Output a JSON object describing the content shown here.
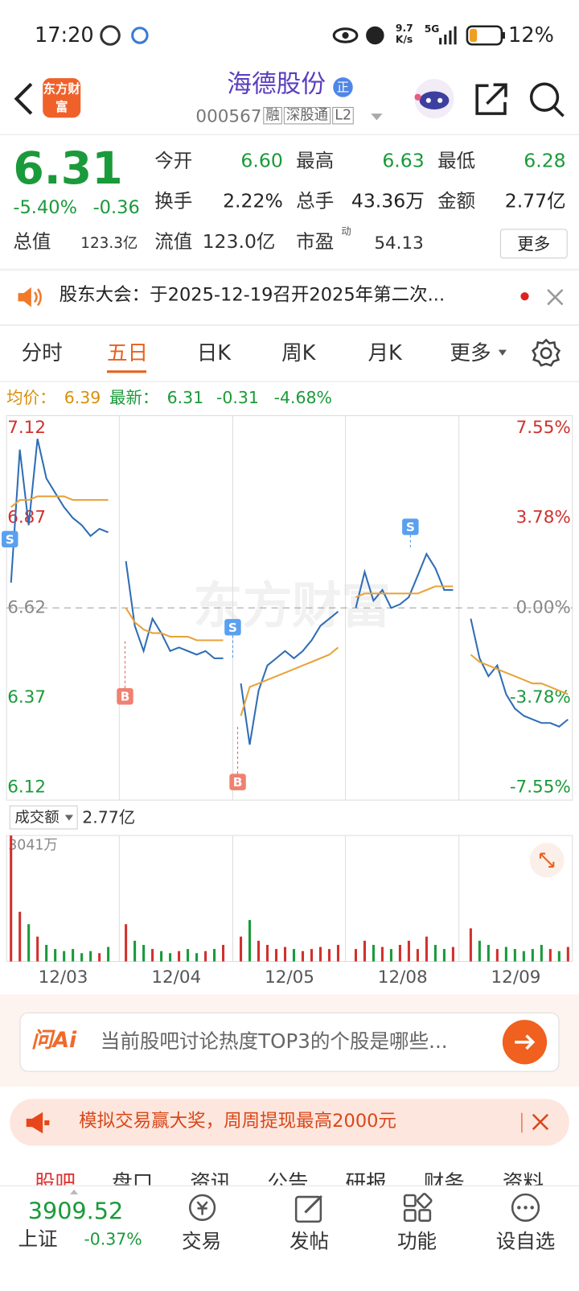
{
  "status_bar": {
    "time": "17:20",
    "speed_value": "9.7",
    "speed_unit": "K/s",
    "network": "5G",
    "battery": "12%"
  },
  "header": {
    "logo": "东方财富",
    "title": "海德股份",
    "badge": "正",
    "code": "000567",
    "tags": [
      "融",
      "深股通",
      "L2"
    ]
  },
  "quote": {
    "price": "6.31",
    "change_pct": "-5.40%",
    "change": "-0.36",
    "fields": [
      {
        "label": "今开",
        "value": "6.60"
      },
      {
        "label": "最高",
        "value": "6.63"
      },
      {
        "label": "最低",
        "value": "6.28"
      },
      {
        "label": "换手",
        "value": "2.22%"
      },
      {
        "label": "总手",
        "value": "43.36万"
      },
      {
        "label": "金额",
        "value": "2.77亿"
      },
      {
        "label": "总值",
        "value": "123.3亿"
      },
      {
        "label": "流值",
        "value": "123.0亿"
      },
      {
        "label": "市盈",
        "value": "54.13"
      }
    ],
    "pe_sup": "动",
    "more": "更多"
  },
  "notice": "股东大会：于2025-12-19召开2025年第二次...",
  "tabs": [
    "分时",
    "五日",
    "日K",
    "周K",
    "月K",
    "更多"
  ],
  "summary": {
    "avg_label": "均价：",
    "avg": "6.39",
    "latest_label": "最新：",
    "latest": "6.31",
    "change": "-0.31",
    "change_pct": "-4.68%"
  },
  "chart_data": {
    "type": "line",
    "watermark": "东方财富",
    "ylim": [
      6.12,
      7.12
    ],
    "yticks": [
      7.12,
      6.87,
      6.62,
      6.37,
      6.12
    ],
    "y2lim": [
      -7.55,
      7.55
    ],
    "y2ticks": [
      {
        "value": 7.55,
        "label": "7.55%"
      },
      {
        "value": 3.78,
        "label": "3.78%"
      },
      {
        "value": 0,
        "label": "0.00%"
      },
      {
        "value": -3.78,
        "label": "-3.78%"
      },
      {
        "value": -7.55,
        "label": "-7.55%"
      }
    ],
    "day_labels": [
      "12/03",
      "12/04",
      "12/05",
      "12/08",
      "12/09"
    ],
    "series": [
      {
        "color": "#2f6db5",
        "values": [
          6.69,
          7.06,
          6.85,
          7.09,
          6.98,
          6.94,
          6.9,
          6.87,
          6.85,
          6.82,
          6.84,
          6.83,
          null,
          6.75,
          6.57,
          6.5,
          6.59,
          6.55,
          6.5,
          6.51,
          6.5,
          6.49,
          6.5,
          6.48,
          6.48,
          null,
          6.41,
          6.24,
          6.39,
          6.46,
          6.48,
          6.5,
          6.48,
          6.5,
          6.53,
          6.57,
          6.59,
          6.61,
          null,
          6.62,
          6.72,
          6.64,
          6.67,
          6.62,
          6.63,
          6.65,
          6.71,
          6.77,
          6.73,
          6.67,
          6.67,
          null,
          6.59,
          6.48,
          6.43,
          6.46,
          6.38,
          6.34,
          6.32,
          6.31,
          6.3,
          6.3,
          6.29,
          6.31
        ]
      },
      {
        "color": "#e8a33a",
        "values": [
          6.9,
          6.92,
          6.92,
          6.93,
          6.93,
          6.93,
          6.93,
          6.92,
          6.92,
          6.92,
          6.92,
          6.92,
          null,
          6.62,
          6.58,
          6.56,
          6.55,
          6.55,
          6.54,
          6.54,
          6.54,
          6.53,
          6.53,
          6.53,
          6.53,
          null,
          6.32,
          6.4,
          6.41,
          6.42,
          6.43,
          6.44,
          6.45,
          6.46,
          6.47,
          6.48,
          6.49,
          6.51,
          null,
          6.65,
          6.66,
          6.66,
          6.66,
          6.66,
          6.66,
          6.66,
          6.66,
          6.67,
          6.68,
          6.68,
          6.68,
          null,
          6.49,
          6.47,
          6.46,
          6.45,
          6.44,
          6.43,
          6.42,
          6.41,
          6.41,
          6.4,
          6.39,
          6.38
        ]
      }
    ],
    "trade_marks": [
      "S",
      "B",
      "S",
      "B",
      "S"
    ],
    "volume": {
      "label": "成交额",
      "total": "2.77亿",
      "ylim": [
        0,
        3041
      ],
      "yticks": [
        {
          "value": 3041,
          "label": "3041万"
        }
      ],
      "values": [
        3041,
        1200,
        900,
        600,
        400,
        300,
        250,
        300,
        200,
        250,
        200,
        350,
        null,
        900,
        500,
        400,
        300,
        250,
        200,
        250,
        300,
        200,
        250,
        300,
        400,
        null,
        600,
        1000,
        500,
        400,
        300,
        350,
        300,
        250,
        300,
        350,
        300,
        400,
        null,
        300,
        500,
        400,
        350,
        300,
        400,
        500,
        300,
        600,
        400,
        300,
        350,
        null,
        800,
        500,
        400,
        300,
        350,
        300,
        250,
        300,
        400,
        300,
        250,
        350
      ]
    }
  },
  "ai_bar": {
    "brand": "问Ai",
    "prompt": "当前股吧讨论热度TOP3的个股是哪些..."
  },
  "promo": "模拟交易赢大奖，周周提现最高2000元",
  "sub_tabs": [
    "股吧",
    "盘口",
    "资讯",
    "公告",
    "研报",
    "财务",
    "资料"
  ],
  "bottom_nav": {
    "index_value": "3909.52",
    "index_name": "上证",
    "index_change": "-0.37%",
    "items": [
      "交易",
      "发帖",
      "功能",
      "设自选"
    ]
  }
}
